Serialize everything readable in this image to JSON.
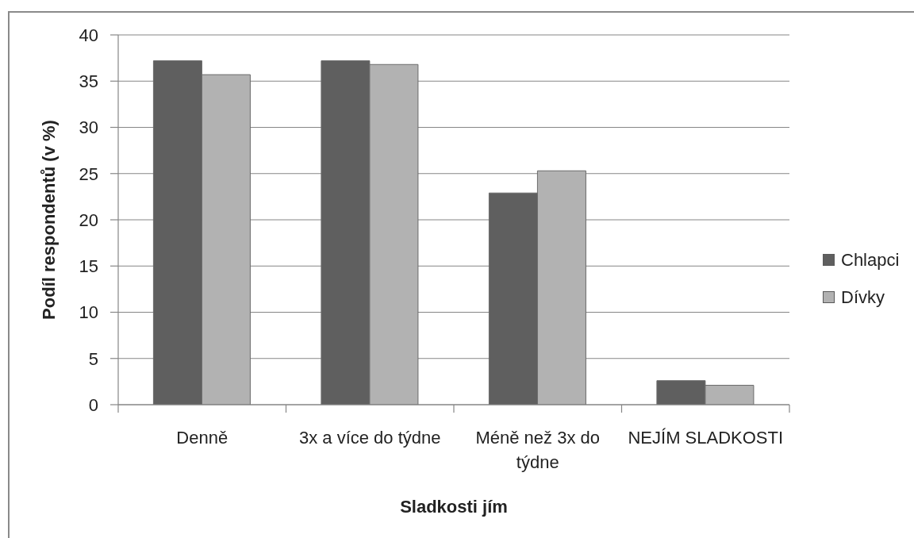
{
  "chart_data": {
    "type": "bar",
    "xlabel": "Sladkosti jím",
    "ylabel": "Podíl respondentů (v %)",
    "categories": [
      "Denně",
      "3x a více do týdne",
      "Méně než 3x do týdne",
      "NEJÍM SLADKOSTI"
    ],
    "series": [
      {
        "name": "Chlapci",
        "color": "#5f5f5f",
        "values": [
          37.2,
          37.2,
          22.9,
          2.6
        ]
      },
      {
        "name": "Dívky",
        "color": "#b2b2b2",
        "values": [
          35.7,
          36.8,
          25.3,
          2.1
        ]
      }
    ],
    "ylim": [
      0,
      40
    ],
    "yticks": [
      0,
      5,
      10,
      15,
      20,
      25,
      30,
      35,
      40
    ],
    "grid": "y",
    "legend": "right"
  }
}
